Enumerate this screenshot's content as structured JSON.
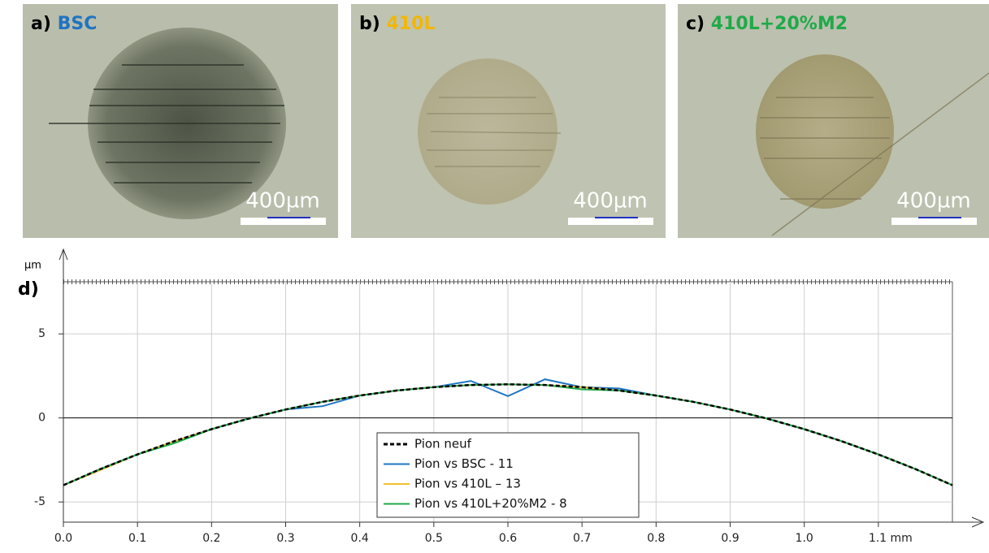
{
  "panels": [
    {
      "label": "a)",
      "name": "BSC",
      "color": "#1f74c2",
      "scale": "400µm"
    },
    {
      "label": "b)",
      "name": "410L",
      "color": "#f2b705",
      "scale": "400µm"
    },
    {
      "label": "c)",
      "name": "410L+20%M2",
      "color": "#1faa4a",
      "scale": "400µm"
    }
  ],
  "chart_data": {
    "type": "line",
    "label": "d)",
    "y_unit": "µm",
    "x": [
      0,
      0.05,
      0.1,
      0.15,
      0.2,
      0.25,
      0.3,
      0.35,
      0.4,
      0.45,
      0.5,
      0.55,
      0.6,
      0.65,
      0.7,
      0.75,
      0.8,
      0.85,
      0.9,
      0.95,
      1.0,
      1.05,
      1.1,
      1.15,
      1.2
    ],
    "series": [
      {
        "name": "Pion neuf",
        "color": "#000000",
        "dashed": true,
        "values": [
          -4,
          -3.04,
          -2.17,
          -1.38,
          -0.67,
          -0.04,
          0.5,
          0.96,
          1.33,
          1.63,
          1.83,
          1.96,
          2,
          1.96,
          1.83,
          1.63,
          1.33,
          0.96,
          0.5,
          -0.04,
          -0.67,
          -1.38,
          -2.17,
          -3.04,
          -4
        ]
      },
      {
        "name": "Pion vs BSC - 11",
        "color": "#1f74c2",
        "dashed": false,
        "values": [
          -4,
          -3.04,
          -2.17,
          -1.38,
          -0.67,
          -0.04,
          0.5,
          0.7,
          1.33,
          1.63,
          1.83,
          2.2,
          1.3,
          2.3,
          1.83,
          1.75,
          1.33,
          0.96,
          0.5,
          -0.04,
          -0.67,
          -1.38,
          -2.17,
          -3.04,
          -4
        ]
      },
      {
        "name": "Pion vs 410L – 13",
        "color": "#f2c12e",
        "dashed": false,
        "values": [
          -4,
          -3.1,
          -2.17,
          -1.38,
          -0.67,
          -0.04,
          0.5,
          0.96,
          1.33,
          1.63,
          1.83,
          1.96,
          2,
          1.96,
          1.83,
          1.63,
          1.33,
          0.96,
          0.5,
          -0.04,
          -0.67,
          -1.38,
          -2.17,
          -3.04,
          -4
        ]
      },
      {
        "name": "Pion vs 410L+20%M2 - 8",
        "color": "#1faa4a",
        "dashed": false,
        "values": [
          -4,
          -3.04,
          -2.17,
          -1.5,
          -0.67,
          -0.04,
          0.5,
          0.96,
          1.33,
          1.63,
          1.83,
          1.96,
          2,
          1.96,
          1.7,
          1.63,
          1.33,
          0.96,
          0.5,
          -0.04,
          -0.67,
          -1.38,
          -2.17,
          -3.04,
          -4
        ]
      }
    ],
    "xlim": [
      0,
      1.2
    ],
    "ylim": [
      -6.2,
      8.1
    ],
    "xticks": [
      {
        "value": 0,
        "label": "0.0"
      },
      0.1,
      0.2,
      0.3,
      0.4,
      0.5,
      0.6,
      0.7,
      0.8,
      0.9,
      {
        "value": 1,
        "label": "1.0"
      },
      {
        "value": 1.1,
        "label": "1.1 mm"
      }
    ],
    "yticks": [
      -5,
      0,
      5
    ],
    "grid": true,
    "legend": "lower center"
  }
}
